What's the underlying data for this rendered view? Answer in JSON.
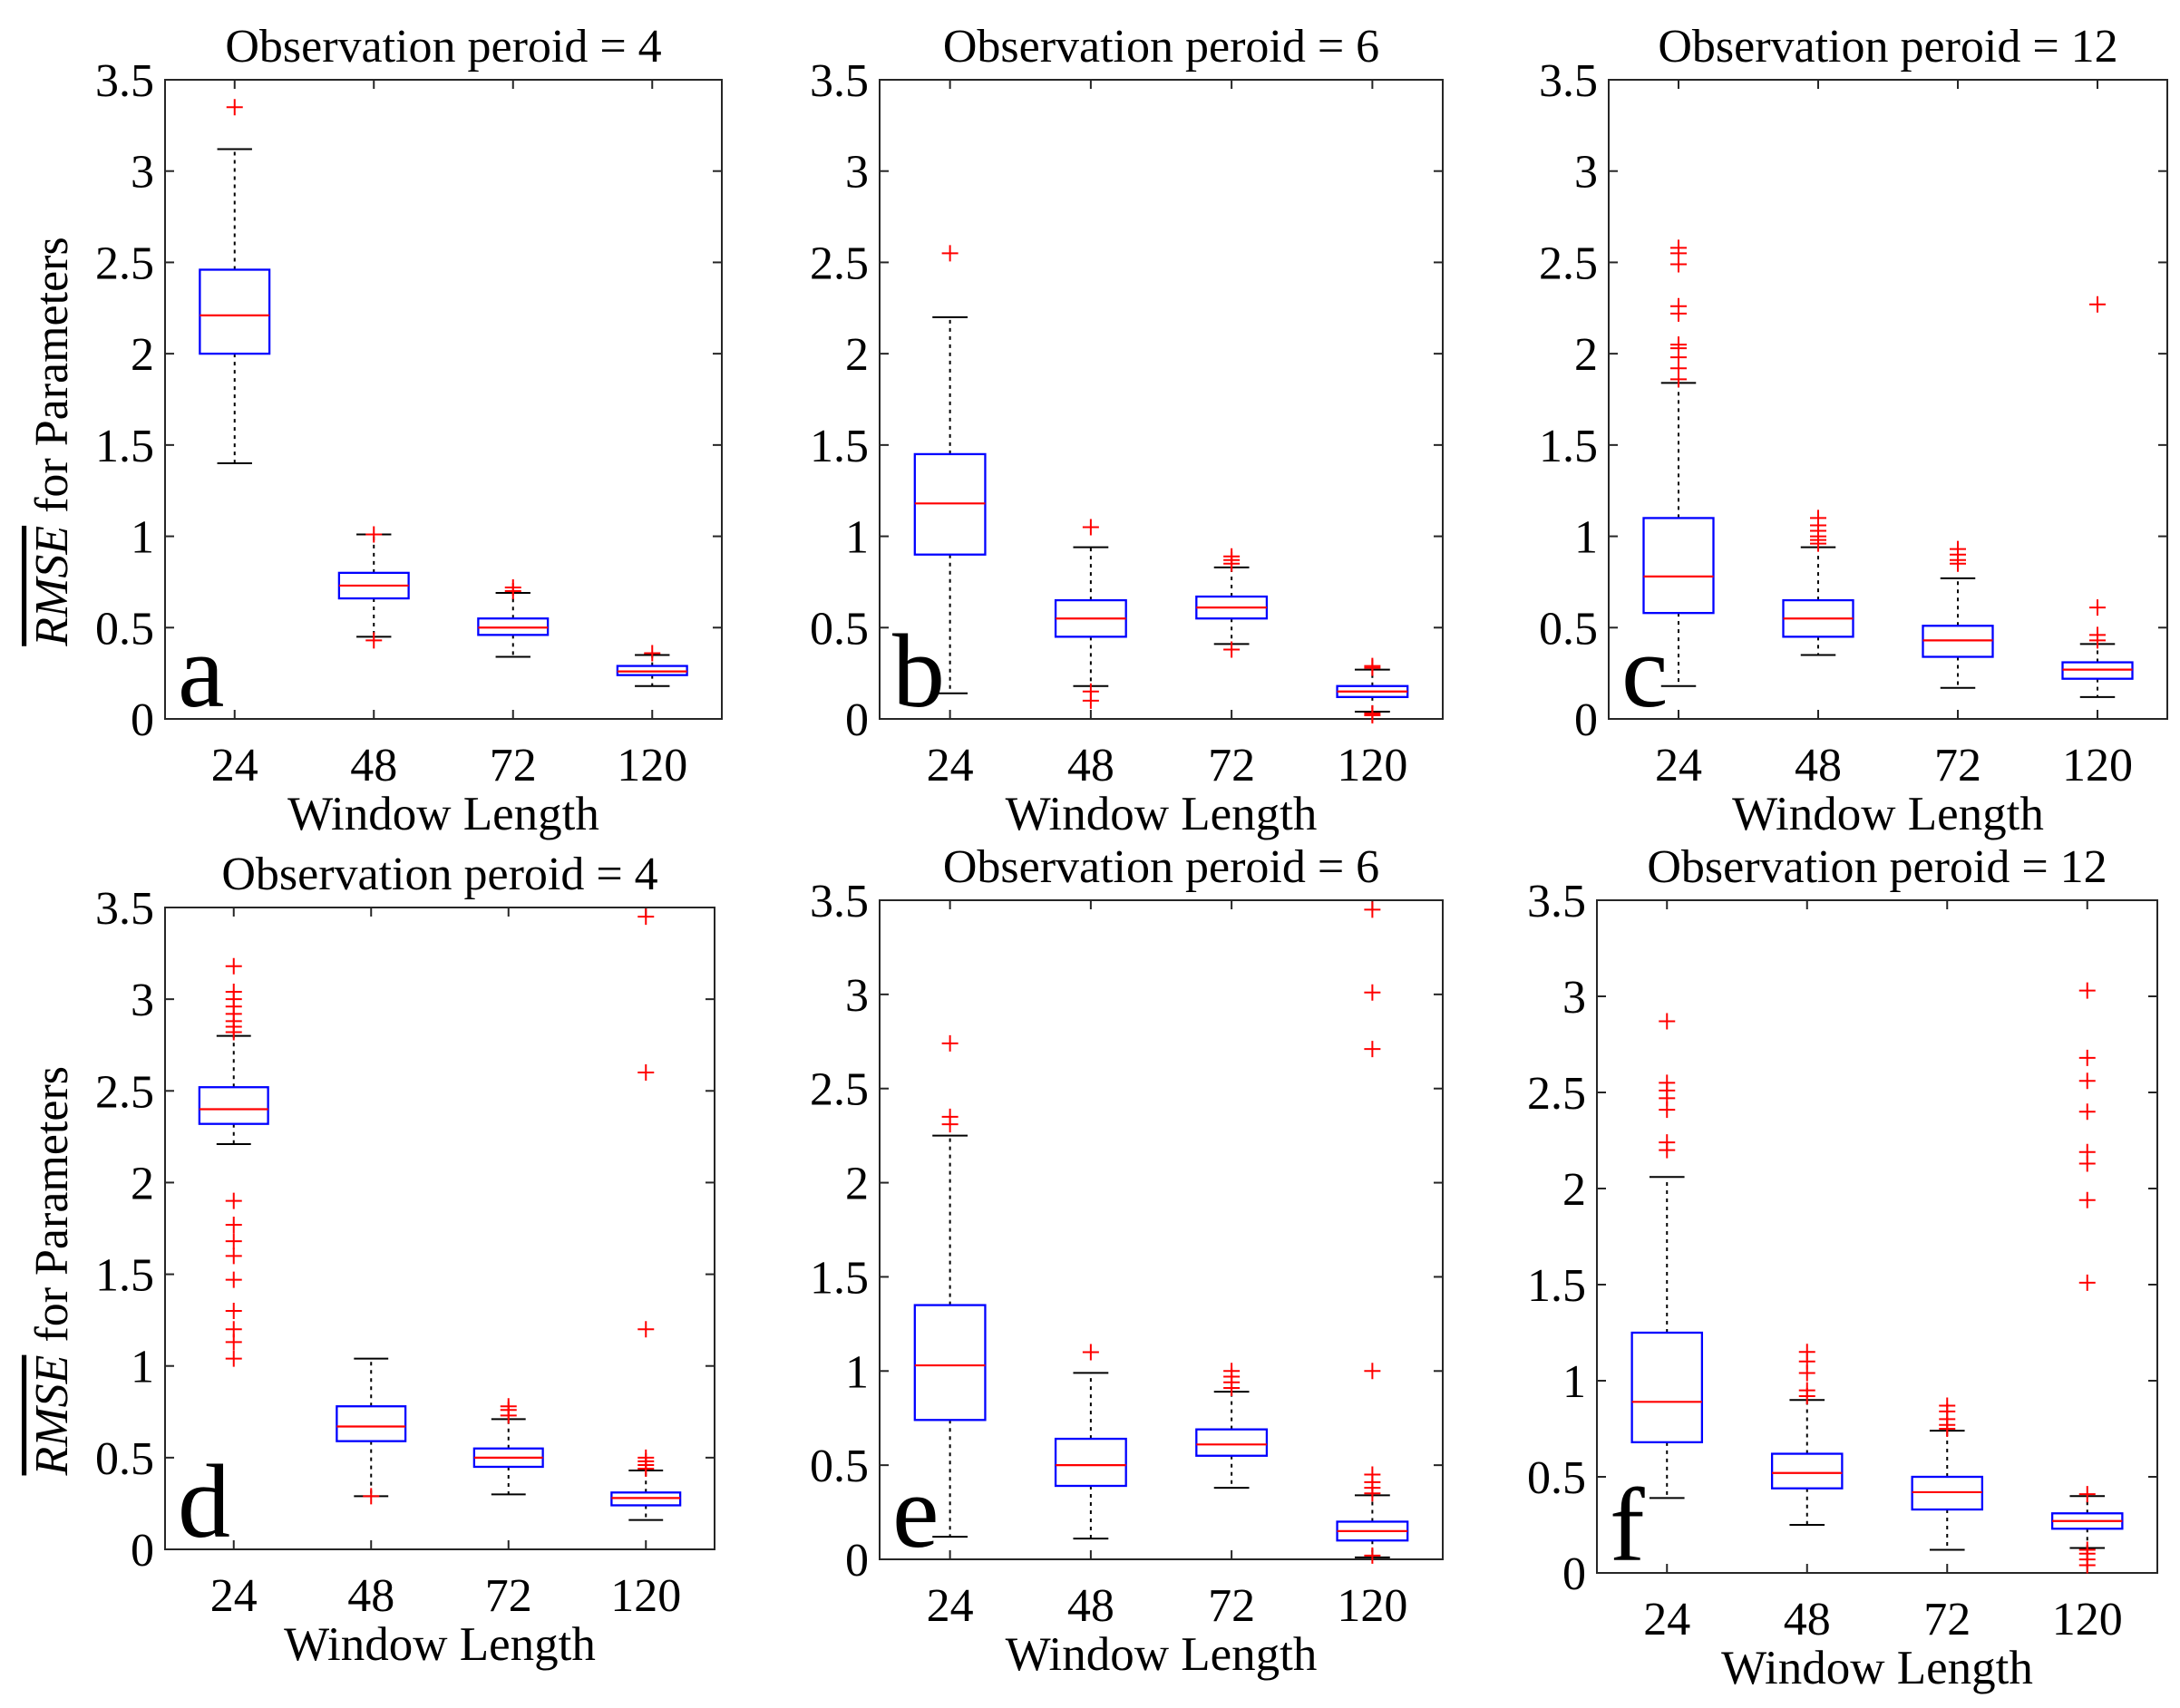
{
  "style": {
    "background": "#ffffff",
    "axis_color": "#262626",
    "box_color": "#0000ff",
    "median_color": "#ff0000",
    "whisker_color": "#000000",
    "outlier_color": "#ff0000"
  },
  "chart_data": [
    {
      "type": "boxplot",
      "panel_label": "a",
      "title": "Observation peroid = 4",
      "xlabel": "Window Length",
      "ylabel_symbol": "RMSE",
      "ylabel_text": "for Parameters",
      "categories": [
        "24",
        "48",
        "72",
        "120"
      ],
      "ylim": [
        0,
        3.5
      ],
      "yticks": [
        0,
        0.5,
        1,
        1.5,
        2,
        2.5,
        3,
        3.5
      ],
      "boxes": [
        {
          "whisker_low": 1.4,
          "q1": 2.0,
          "median": 2.21,
          "q3": 2.46,
          "whisker_high": 3.12,
          "outliers": [
            3.35
          ]
        },
        {
          "whisker_low": 0.45,
          "q1": 0.66,
          "median": 0.73,
          "q3": 0.8,
          "whisker_high": 1.01,
          "outliers": [
            0.43,
            1.01
          ]
        },
        {
          "whisker_low": 0.34,
          "q1": 0.46,
          "median": 0.5,
          "q3": 0.55,
          "whisker_high": 0.69,
          "outliers": [
            0.7,
            0.72
          ]
        },
        {
          "whisker_low": 0.18,
          "q1": 0.24,
          "median": 0.26,
          "q3": 0.29,
          "whisker_high": 0.35,
          "outliers": [
            0.36
          ]
        }
      ]
    },
    {
      "type": "boxplot",
      "panel_label": "b",
      "title": "Observation peroid = 6",
      "xlabel": "Window Length",
      "categories": [
        "24",
        "48",
        "72",
        "120"
      ],
      "ylim": [
        0,
        3.5
      ],
      "yticks": [
        0,
        0.5,
        1,
        1.5,
        2,
        2.5,
        3,
        3.5
      ],
      "boxes": [
        {
          "whisker_low": 0.14,
          "q1": 0.9,
          "median": 1.18,
          "q3": 1.45,
          "whisker_high": 2.2,
          "outliers": [
            2.55
          ]
        },
        {
          "whisker_low": 0.18,
          "q1": 0.45,
          "median": 0.55,
          "q3": 0.65,
          "whisker_high": 0.94,
          "outliers": [
            0.1,
            0.15,
            1.05
          ]
        },
        {
          "whisker_low": 0.41,
          "q1": 0.55,
          "median": 0.61,
          "q3": 0.67,
          "whisker_high": 0.83,
          "outliers": [
            0.38,
            0.85,
            0.87,
            0.89
          ]
        },
        {
          "whisker_low": 0.04,
          "q1": 0.12,
          "median": 0.15,
          "q3": 0.18,
          "whisker_high": 0.27,
          "outliers": [
            0.02,
            0.03,
            0.28,
            0.29
          ]
        }
      ]
    },
    {
      "type": "boxplot",
      "panel_label": "c",
      "title": "Observation peroid = 12",
      "xlabel": "Window Length",
      "categories": [
        "24",
        "48",
        "72",
        "120"
      ],
      "ylim": [
        0,
        3.5
      ],
      "yticks": [
        0,
        0.5,
        1,
        1.5,
        2,
        2.5,
        3,
        3.5
      ],
      "boxes": [
        {
          "whisker_low": 0.18,
          "q1": 0.58,
          "median": 0.78,
          "q3": 1.1,
          "whisker_high": 1.84,
          "outliers": [
            1.86,
            1.92,
            1.98,
            2.03,
            2.05,
            2.22,
            2.26,
            2.49,
            2.55,
            2.58
          ]
        },
        {
          "whisker_low": 0.35,
          "q1": 0.45,
          "median": 0.55,
          "q3": 0.65,
          "whisker_high": 0.94,
          "outliers": [
            0.96,
            0.98,
            1.0,
            1.03,
            1.06,
            1.1
          ]
        },
        {
          "whisker_low": 0.17,
          "q1": 0.34,
          "median": 0.43,
          "q3": 0.51,
          "whisker_high": 0.77,
          "outliers": [
            0.85,
            0.87,
            0.9,
            0.93
          ]
        },
        {
          "whisker_low": 0.12,
          "q1": 0.22,
          "median": 0.27,
          "q3": 0.31,
          "whisker_high": 0.41,
          "outliers": [
            0.43,
            0.46,
            0.61,
            2.27
          ]
        }
      ]
    },
    {
      "type": "boxplot",
      "panel_label": "d",
      "title": "Observation peroid = 4",
      "xlabel": "Window Length",
      "ylabel_symbol": "RMSE",
      "ylabel_text": "for Parameters",
      "categories": [
        "24",
        "48",
        "72",
        "120"
      ],
      "ylim": [
        0,
        3.5
      ],
      "yticks": [
        0,
        0.5,
        1,
        1.5,
        2,
        2.5,
        3,
        3.5
      ],
      "boxes": [
        {
          "whisker_low": 2.21,
          "q1": 2.32,
          "median": 2.4,
          "q3": 2.52,
          "whisker_high": 2.8,
          "outliers": [
            1.04,
            1.13,
            1.2,
            1.3,
            1.47,
            1.6,
            1.68,
            1.77,
            1.9,
            2.82,
            2.85,
            2.88,
            2.92,
            2.96,
            3.0,
            3.04,
            3.18
          ]
        },
        {
          "whisker_low": 0.29,
          "q1": 0.59,
          "median": 0.67,
          "q3": 0.78,
          "whisker_high": 1.04,
          "outliers": [
            0.29
          ]
        },
        {
          "whisker_low": 0.3,
          "q1": 0.45,
          "median": 0.5,
          "q3": 0.55,
          "whisker_high": 0.71,
          "outliers": [
            0.73,
            0.76,
            0.78
          ]
        },
        {
          "whisker_low": 0.16,
          "q1": 0.24,
          "median": 0.28,
          "q3": 0.31,
          "whisker_high": 0.43,
          "outliers": [
            0.44,
            0.46,
            0.48,
            0.5,
            1.2,
            2.6,
            3.45
          ]
        }
      ]
    },
    {
      "type": "boxplot",
      "panel_label": "e",
      "title": "Observation peroid = 6",
      "xlabel": "Window Length",
      "categories": [
        "24",
        "48",
        "72",
        "120"
      ],
      "ylim": [
        0,
        3.5
      ],
      "yticks": [
        0,
        0.5,
        1,
        1.5,
        2,
        2.5,
        3,
        3.5
      ],
      "boxes": [
        {
          "whisker_low": 0.12,
          "q1": 0.74,
          "median": 1.03,
          "q3": 1.35,
          "whisker_high": 2.25,
          "outliers": [
            2.31,
            2.35,
            2.74
          ]
        },
        {
          "whisker_low": 0.11,
          "q1": 0.39,
          "median": 0.5,
          "q3": 0.64,
          "whisker_high": 0.99,
          "outliers": [
            1.1
          ]
        },
        {
          "whisker_low": 0.38,
          "q1": 0.55,
          "median": 0.61,
          "q3": 0.69,
          "whisker_high": 0.89,
          "outliers": [
            0.91,
            0.94,
            0.97,
            1.0
          ]
        },
        {
          "whisker_low": 0.01,
          "q1": 0.1,
          "median": 0.15,
          "q3": 0.2,
          "whisker_high": 0.34,
          "outliers": [
            0.02,
            0.35,
            0.38,
            0.41,
            0.45,
            1.0,
            2.71,
            3.01,
            3.45
          ]
        }
      ]
    },
    {
      "type": "boxplot",
      "panel_label": "f",
      "title": "Observation peroid = 12",
      "xlabel": "Window Length",
      "categories": [
        "24",
        "48",
        "72",
        "120"
      ],
      "ylim": [
        0,
        3.5
      ],
      "yticks": [
        0,
        0.5,
        1,
        1.5,
        2,
        2.5,
        3,
        3.5
      ],
      "boxes": [
        {
          "whisker_low": 0.39,
          "q1": 0.68,
          "median": 0.89,
          "q3": 1.25,
          "whisker_high": 2.06,
          "outliers": [
            2.2,
            2.24,
            2.41,
            2.47,
            2.51,
            2.55,
            2.87
          ]
        },
        {
          "whisker_low": 0.25,
          "q1": 0.44,
          "median": 0.52,
          "q3": 0.62,
          "whisker_high": 0.9,
          "outliers": [
            0.92,
            0.95,
            1.04,
            1.1,
            1.15
          ]
        },
        {
          "whisker_low": 0.12,
          "q1": 0.33,
          "median": 0.42,
          "q3": 0.5,
          "whisker_high": 0.74,
          "outliers": [
            0.75,
            0.77,
            0.8,
            0.84,
            0.87
          ]
        },
        {
          "whisker_low": 0.13,
          "q1": 0.23,
          "median": 0.27,
          "q3": 0.31,
          "whisker_high": 0.4,
          "outliers": [
            0.04,
            0.07,
            0.1,
            0.12,
            0.41,
            1.51,
            1.94,
            2.13,
            2.19,
            2.4,
            2.56,
            2.68,
            3.03
          ]
        }
      ]
    }
  ]
}
